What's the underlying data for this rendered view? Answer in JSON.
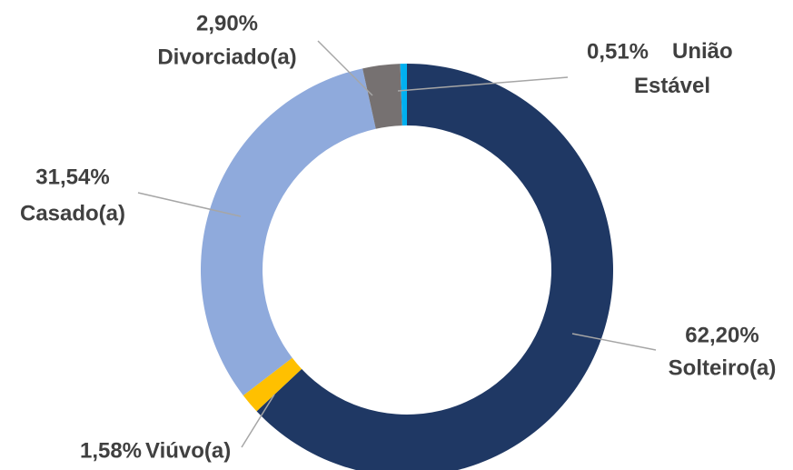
{
  "chart_data": {
    "type": "donut",
    "categories": [
      "Solteiro(a)",
      "Viúvo(a)",
      "Casado(a)",
      "Divorciado(a)",
      "União Estável"
    ],
    "values": [
      62.2,
      1.58,
      31.54,
      2.9,
      0.51
    ],
    "value_labels": [
      "62,20%",
      "1,58%",
      "31,54%",
      "2,90%",
      "0,51%"
    ],
    "colors": [
      "#1f3864",
      "#ffc000",
      "#8faadc",
      "#767171",
      "#00b0f0"
    ]
  }
}
